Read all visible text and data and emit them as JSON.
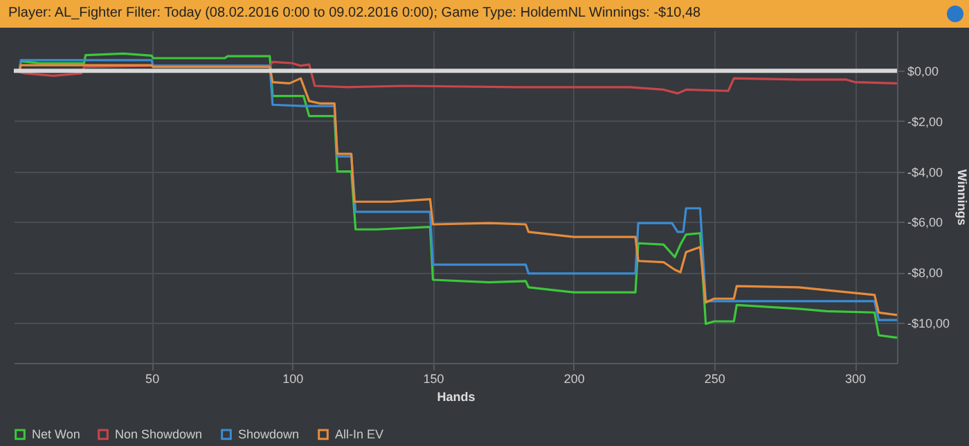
{
  "chart_data": {
    "type": "line",
    "title": "Player: AL_Fighter Filter: Today (08.02.2016 0:00 to 09.02.2016 0:00); Game Type: HoldemNL Winnings: -$10,48",
    "xlabel": "Hands",
    "ylabel": "Winnings",
    "xlim": [
      1,
      315
    ],
    "xticks": [
      50,
      100,
      150,
      200,
      250,
      300
    ],
    "ylim": [
      -11.6,
      1.6
    ],
    "yticks": [
      {
        "value": -10,
        "label": "-$10,00"
      },
      {
        "value": -8,
        "label": "-$8,00"
      },
      {
        "value": -6,
        "label": "-$6,00"
      },
      {
        "value": -4,
        "label": "-$4,00"
      },
      {
        "value": -2,
        "label": "-$2,00"
      },
      {
        "value": 0,
        "label": "$0,00"
      }
    ],
    "grid": true,
    "legend": "bottom",
    "line_style": "solid",
    "marker": "none",
    "ref_lines": [
      {
        "axis": "y",
        "value": 0,
        "label": null,
        "color": "#d8d8d8"
      }
    ],
    "series": [
      {
        "name": "Net Won",
        "color": "#3cc83c",
        "x": [
          1,
          3,
          3.5,
          10,
          26,
          26.5,
          40,
          50,
          50.5,
          76,
          77,
          92,
          93,
          104,
          104.5,
          106,
          115,
          116,
          121,
          122.5,
          130,
          149,
          150,
          170,
          183,
          184,
          200,
          222,
          223,
          232,
          236,
          238,
          240,
          245,
          247,
          250,
          257,
          258,
          280,
          290,
          307,
          308.5,
          315
        ],
        "values": [
          0,
          0,
          0.38,
          0.3,
          0.3,
          0.62,
          0.68,
          0.6,
          0.5,
          0.5,
          0.58,
          0.58,
          -1.0,
          -1.0,
          -1.2,
          -1.8,
          -1.8,
          -4.0,
          -4.0,
          -6.3,
          -6.3,
          -6.2,
          -8.3,
          -8.4,
          -8.35,
          -8.6,
          -8.8,
          -8.8,
          -6.85,
          -6.9,
          -7.4,
          -6.9,
          -6.5,
          -6.45,
          -10.05,
          -9.95,
          -9.95,
          -9.3,
          -9.45,
          -9.55,
          -9.6,
          -10.5,
          -10.6
        ]
      },
      {
        "name": "Non Showdown",
        "color": "#c8464b",
        "x": [
          1,
          5,
          15,
          25,
          26,
          50,
          92,
          93,
          100,
          103,
          106,
          108,
          120,
          140,
          180,
          220,
          232,
          237,
          240,
          255,
          257,
          280,
          297,
          300,
          315
        ],
        "values": [
          0,
          -0.1,
          -0.2,
          -0.1,
          0.15,
          0.2,
          0.2,
          0.35,
          0.3,
          0.2,
          0.25,
          -0.6,
          -0.65,
          -0.6,
          -0.65,
          -0.65,
          -0.75,
          -0.9,
          -0.75,
          -0.8,
          -0.3,
          -0.35,
          -0.35,
          -0.45,
          -0.5
        ]
      },
      {
        "name": "Showdown",
        "color": "#3c8cd2",
        "x": [
          1,
          3,
          3.5,
          50,
          50.5,
          92,
          93,
          104,
          115,
          116,
          121,
          122.5,
          149,
          150,
          183,
          184,
          222,
          223,
          235,
          237,
          239,
          240,
          245,
          247,
          307,
          308.5,
          315
        ],
        "values": [
          0,
          0,
          0.42,
          0.42,
          0.2,
          0.2,
          -1.35,
          -1.4,
          -1.4,
          -3.4,
          -3.4,
          -5.6,
          -5.6,
          -7.7,
          -7.7,
          -8.05,
          -8.05,
          -6.05,
          -6.05,
          -6.4,
          -6.4,
          -5.46,
          -5.46,
          -9.15,
          -9.15,
          -9.9,
          -9.9
        ]
      },
      {
        "name": "All-In EV",
        "color": "#e68c3c",
        "x": [
          1,
          3,
          3.5,
          50,
          50.5,
          92,
          93,
          99,
          103,
          106,
          110,
          115,
          116,
          121,
          122,
          135,
          149,
          150,
          170,
          183,
          184,
          200,
          222,
          223,
          232,
          236,
          238,
          240,
          245,
          247,
          250,
          257,
          258,
          280,
          307,
          308.5,
          315
        ],
        "values": [
          0,
          0,
          0.22,
          0.22,
          0.15,
          0.15,
          -0.45,
          -0.5,
          -0.3,
          -1.2,
          -1.3,
          -1.3,
          -3.3,
          -3.3,
          -5.2,
          -5.2,
          -5.1,
          -6.1,
          -6.05,
          -6.1,
          -6.4,
          -6.6,
          -6.6,
          -7.55,
          -7.6,
          -7.9,
          -8.0,
          -7.2,
          -7.0,
          -9.2,
          -9.05,
          -9.05,
          -8.55,
          -8.6,
          -8.9,
          -9.6,
          -9.7
        ]
      }
    ]
  }
}
